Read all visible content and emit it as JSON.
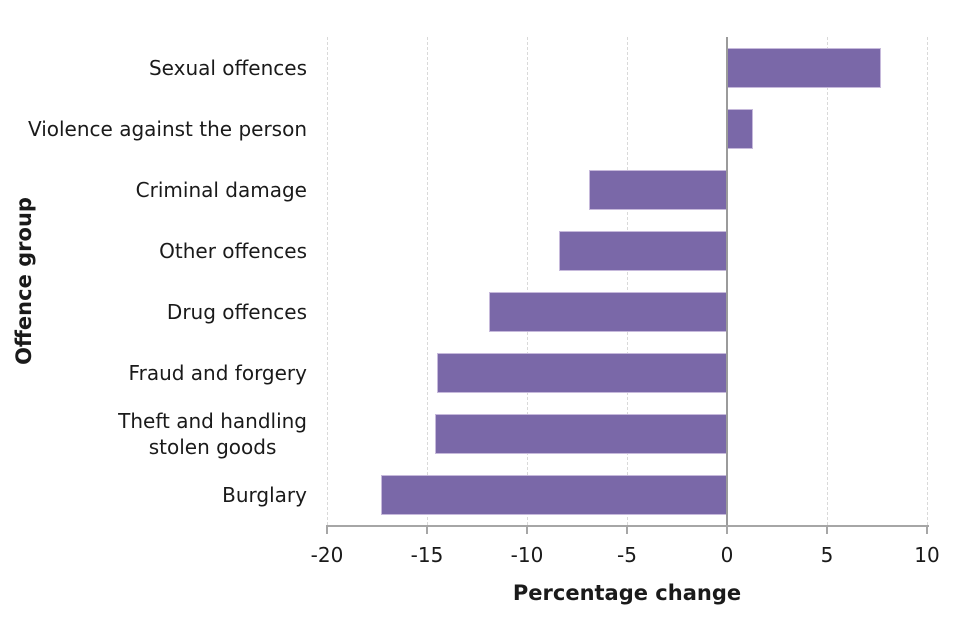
{
  "chart_data": {
    "type": "bar",
    "orientation": "horizontal",
    "title": "",
    "xlabel": "Percentage change",
    "ylabel": "Offence group",
    "categories": [
      "Sexual offences",
      "Violence against the person",
      "Criminal damage",
      "Other offences",
      "Drug offences",
      "Fraud and forgery",
      "Theft and handling\nstolen goods",
      "Burglary"
    ],
    "values": [
      7.7,
      1.3,
      -6.9,
      -8.4,
      -11.9,
      -14.5,
      -14.6,
      -17.3
    ],
    "xlim": [
      -20,
      10
    ],
    "xticks": [
      -20,
      -15,
      -10,
      -5,
      0,
      5,
      10
    ],
    "xtick_labels": [
      "-20",
      "-15",
      "-10",
      "-5",
      "0",
      "5",
      "10"
    ],
    "grid": "vertical-dashed",
    "legend": "none",
    "colors": {
      "bar_fill": "#7a68a8",
      "bar_border": "#c6b9db",
      "gridline": "#d9d9d9",
      "axis": "#a6a6a6",
      "zero_line": "#9b9b9b",
      "text": "#1a1a1a",
      "background": "#ffffff"
    }
  }
}
